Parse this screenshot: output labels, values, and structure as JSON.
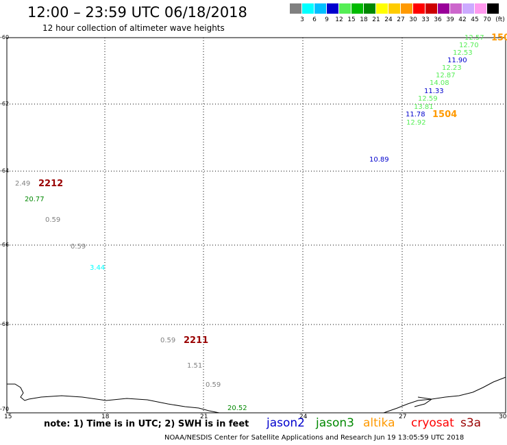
{
  "header": {
    "title": "12:00 – 23:59 UTC 06/18/2018",
    "subtitle": "12 hour collection of altimeter wave heights"
  },
  "legend": {
    "unit": "(ft)",
    "bins": [
      {
        "label": "3",
        "color": "#808080"
      },
      {
        "label": "6",
        "color": "#00ffff"
      },
      {
        "label": "9",
        "color": "#00bfff"
      },
      {
        "label": "12",
        "color": "#0000cd"
      },
      {
        "label": "15",
        "color": "#55ee55"
      },
      {
        "label": "18",
        "color": "#00bb00"
      },
      {
        "label": "21",
        "color": "#008800"
      },
      {
        "label": "24",
        "color": "#ffff00"
      },
      {
        "label": "27",
        "color": "#ffcc00"
      },
      {
        "label": "30",
        "color": "#ff9900"
      },
      {
        "label": "33",
        "color": "#ff0000"
      },
      {
        "label": "36",
        "color": "#cc0000"
      },
      {
        "label": "39",
        "color": "#990099"
      },
      {
        "label": "42",
        "color": "#cc66cc"
      },
      {
        "label": "45",
        "color": "#ccaaff"
      },
      {
        "label": "70",
        "color": "#ff99ee"
      },
      {
        "label": "",
        "color": "#000000"
      }
    ]
  },
  "axes": {
    "y_ticks": [
      "-60",
      "-62",
      "-64",
      "-66",
      "-68",
      "-70"
    ],
    "x_ticks": [
      "15",
      "18",
      "21",
      "24",
      "27",
      "30"
    ]
  },
  "observations": [
    {
      "text": "12.57",
      "color": "#55ee55"
    },
    {
      "text": "12.70",
      "color": "#55ee55"
    },
    {
      "text": "12.53",
      "color": "#55ee55"
    },
    {
      "text": "11.90",
      "color": "#0000cd"
    },
    {
      "text": "12.23",
      "color": "#55ee55"
    },
    {
      "text": "12.87",
      "color": "#55ee55"
    },
    {
      "text": "14.08",
      "color": "#55ee55"
    },
    {
      "text": "11.33",
      "color": "#0000cd"
    },
    {
      "text": "12.59",
      "color": "#55ee55"
    },
    {
      "text": "13.81",
      "color": "#55ee55"
    },
    {
      "text": "11.78",
      "color": "#0000cd"
    },
    {
      "text": "12.92",
      "color": "#55ee55"
    },
    {
      "text": "10.89",
      "color": "#0000cd"
    },
    {
      "text": "2.49",
      "color": "#808080"
    },
    {
      "text": "20.77",
      "color": "#008800"
    },
    {
      "text": "0.59",
      "color": "#808080"
    },
    {
      "text": "0.59",
      "color": "#808080"
    },
    {
      "text": "3.44",
      "color": "#00ffff"
    },
    {
      "text": "0.59",
      "color": "#808080"
    },
    {
      "text": "1.51",
      "color": "#808080"
    },
    {
      "text": "0.59",
      "color": "#808080"
    },
    {
      "text": "20.52",
      "color": "#008800"
    }
  ],
  "cycles": [
    {
      "text": "150",
      "color": "#ff9900"
    },
    {
      "text": "1504",
      "color": "#ff9900"
    },
    {
      "text": "2212",
      "color": "#990000"
    },
    {
      "text": "2211",
      "color": "#990000"
    }
  ],
  "note": "note: 1) Time is in UTC; 2) SWH is in feet",
  "satellites": [
    {
      "name": "jason2",
      "color": "#0000cd"
    },
    {
      "name": "jason3",
      "color": "#008800"
    },
    {
      "name": "altika",
      "color": "#ff9900"
    },
    {
      "name": "cryosat",
      "color": "#ff0000"
    },
    {
      "name": "s3a",
      "color": "#990000"
    }
  ],
  "footer": "NOAA/NESDIS Center for Satellite Applications and Research    Jun 19 13:05:59 UTC 2018"
}
